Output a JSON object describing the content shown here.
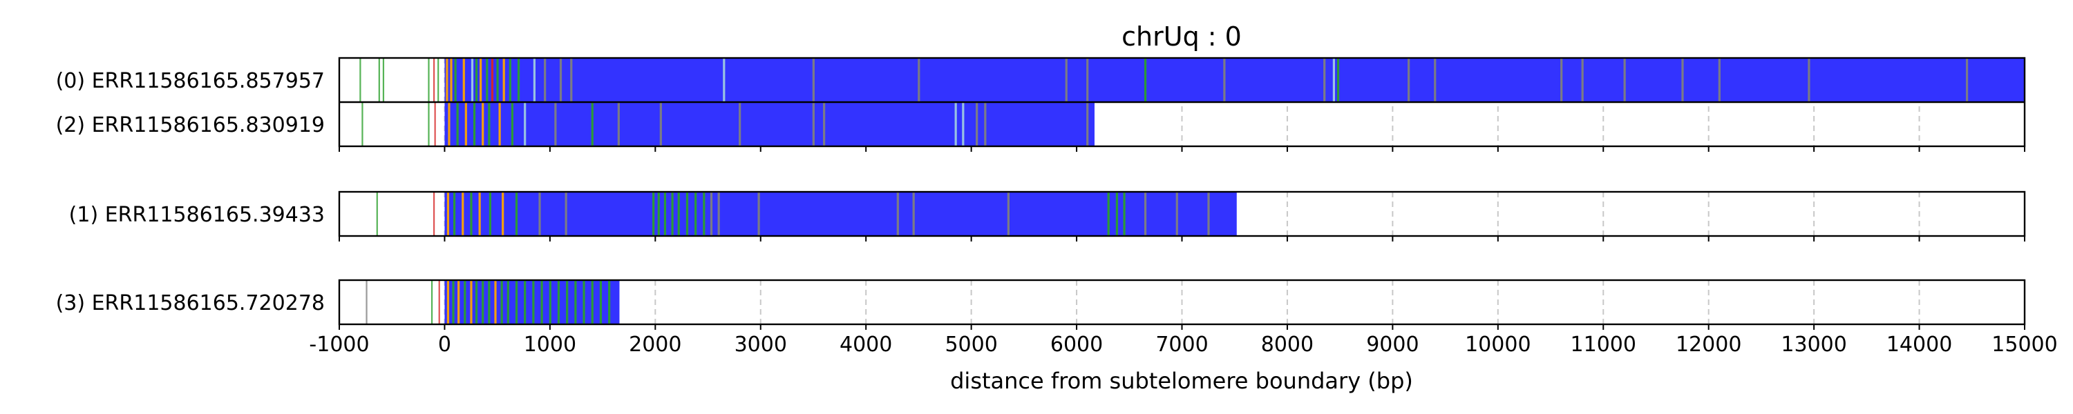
{
  "chart_data": {
    "type": "read-track",
    "title": "chrUq : 0",
    "xlabel": "distance from subtelomere boundary (bp)",
    "xlim": [
      -1000,
      15000
    ],
    "xticks": [
      -1000,
      0,
      1000,
      2000,
      3000,
      4000,
      5000,
      6000,
      7000,
      8000,
      9000,
      10000,
      11000,
      12000,
      13000,
      14000,
      15000
    ],
    "grid": "vertical dashed",
    "colors": {
      "main_fill": "#3333ff",
      "green_mark": "#2ca02c",
      "orange_mark": "#ffa500",
      "red_mark": "#d62728",
      "light_mark": "#9ecae1",
      "gray_mark": "#7f7f7f",
      "grid": "#c8c8c8"
    },
    "reads": [
      {
        "label": "(0) ERR11586165.857957",
        "group": 0,
        "start": 0,
        "end": 15000,
        "marks": [
          {
            "x": -800,
            "c": "green_mark"
          },
          {
            "x": -620,
            "c": "green_mark"
          },
          {
            "x": -580,
            "c": "green_mark"
          },
          {
            "x": -150,
            "c": "green_mark"
          },
          {
            "x": -100,
            "c": "red_mark"
          },
          {
            "x": -60,
            "c": "green_mark"
          },
          {
            "x": 20,
            "c": "orange_mark"
          },
          {
            "x": 60,
            "c": "orange_mark"
          },
          {
            "x": 100,
            "c": "green_mark"
          },
          {
            "x": 180,
            "c": "orange_mark"
          },
          {
            "x": 260,
            "c": "light_mark"
          },
          {
            "x": 300,
            "c": "green_mark"
          },
          {
            "x": 340,
            "c": "orange_mark"
          },
          {
            "x": 400,
            "c": "green_mark"
          },
          {
            "x": 450,
            "c": "red_mark"
          },
          {
            "x": 500,
            "c": "green_mark"
          },
          {
            "x": 560,
            "c": "orange_mark"
          },
          {
            "x": 620,
            "c": "green_mark"
          },
          {
            "x": 700,
            "c": "green_mark"
          },
          {
            "x": 850,
            "c": "light_mark"
          },
          {
            "x": 950,
            "c": "gray_mark"
          },
          {
            "x": 1100,
            "c": "gray_mark"
          },
          {
            "x": 1200,
            "c": "gray_mark"
          },
          {
            "x": 2650,
            "c": "light_mark"
          },
          {
            "x": 3500,
            "c": "gray_mark"
          },
          {
            "x": 4500,
            "c": "gray_mark"
          },
          {
            "x": 5900,
            "c": "gray_mark"
          },
          {
            "x": 6100,
            "c": "gray_mark"
          },
          {
            "x": 6650,
            "c": "green_mark"
          },
          {
            "x": 7400,
            "c": "gray_mark"
          },
          {
            "x": 8350,
            "c": "gray_mark"
          },
          {
            "x": 8440,
            "c": "light_mark"
          },
          {
            "x": 8480,
            "c": "green_mark"
          },
          {
            "x": 9150,
            "c": "gray_mark"
          },
          {
            "x": 9400,
            "c": "gray_mark"
          },
          {
            "x": 10600,
            "c": "gray_mark"
          },
          {
            "x": 10800,
            "c": "gray_mark"
          },
          {
            "x": 11200,
            "c": "gray_mark"
          },
          {
            "x": 11750,
            "c": "gray_mark"
          },
          {
            "x": 12100,
            "c": "gray_mark"
          },
          {
            "x": 12950,
            "c": "gray_mark"
          },
          {
            "x": 14450,
            "c": "gray_mark"
          }
        ]
      },
      {
        "label": "(2) ERR11586165.830919",
        "group": 0,
        "start": 0,
        "end": 6170,
        "marks": [
          {
            "x": -780,
            "c": "green_mark"
          },
          {
            "x": -150,
            "c": "green_mark"
          },
          {
            "x": -90,
            "c": "red_mark"
          },
          {
            "x": 40,
            "c": "orange_mark"
          },
          {
            "x": 120,
            "c": "green_mark"
          },
          {
            "x": 200,
            "c": "orange_mark"
          },
          {
            "x": 280,
            "c": "green_mark"
          },
          {
            "x": 360,
            "c": "orange_mark"
          },
          {
            "x": 420,
            "c": "green_mark"
          },
          {
            "x": 520,
            "c": "orange_mark"
          },
          {
            "x": 640,
            "c": "green_mark"
          },
          {
            "x": 760,
            "c": "light_mark"
          },
          {
            "x": 1050,
            "c": "gray_mark"
          },
          {
            "x": 1400,
            "c": "green_mark"
          },
          {
            "x": 1650,
            "c": "gray_mark"
          },
          {
            "x": 2050,
            "c": "gray_mark"
          },
          {
            "x": 2800,
            "c": "gray_mark"
          },
          {
            "x": 3500,
            "c": "gray_mark"
          },
          {
            "x": 3600,
            "c": "gray_mark"
          },
          {
            "x": 4850,
            "c": "light_mark"
          },
          {
            "x": 4920,
            "c": "light_mark"
          },
          {
            "x": 5050,
            "c": "gray_mark"
          },
          {
            "x": 5130,
            "c": "gray_mark"
          },
          {
            "x": 6100,
            "c": "gray_mark"
          }
        ]
      },
      {
        "label": "(1) ERR11586165.39433",
        "group": 1,
        "start": 0,
        "end": 7520,
        "marks": [
          {
            "x": -640,
            "c": "green_mark"
          },
          {
            "x": -100,
            "c": "red_mark"
          },
          {
            "x": 30,
            "c": "orange_mark"
          },
          {
            "x": 90,
            "c": "green_mark"
          },
          {
            "x": 170,
            "c": "orange_mark"
          },
          {
            "x": 250,
            "c": "green_mark"
          },
          {
            "x": 330,
            "c": "orange_mark"
          },
          {
            "x": 430,
            "c": "green_mark"
          },
          {
            "x": 550,
            "c": "orange_mark"
          },
          {
            "x": 680,
            "c": "green_mark"
          },
          {
            "x": 900,
            "c": "gray_mark"
          },
          {
            "x": 1150,
            "c": "gray_mark"
          },
          {
            "x": 1980,
            "c": "green_mark"
          },
          {
            "x": 2030,
            "c": "green_mark"
          },
          {
            "x": 2090,
            "c": "green_mark"
          },
          {
            "x": 2160,
            "c": "green_mark"
          },
          {
            "x": 2220,
            "c": "green_mark"
          },
          {
            "x": 2300,
            "c": "green_mark"
          },
          {
            "x": 2380,
            "c": "green_mark"
          },
          {
            "x": 2460,
            "c": "green_mark"
          },
          {
            "x": 2530,
            "c": "gray_mark"
          },
          {
            "x": 2600,
            "c": "gray_mark"
          },
          {
            "x": 2980,
            "c": "gray_mark"
          },
          {
            "x": 4300,
            "c": "gray_mark"
          },
          {
            "x": 4450,
            "c": "gray_mark"
          },
          {
            "x": 5350,
            "c": "gray_mark"
          },
          {
            "x": 6300,
            "c": "green_mark"
          },
          {
            "x": 6380,
            "c": "green_mark"
          },
          {
            "x": 6450,
            "c": "green_mark"
          },
          {
            "x": 6650,
            "c": "gray_mark"
          },
          {
            "x": 6950,
            "c": "gray_mark"
          },
          {
            "x": 7250,
            "c": "gray_mark"
          }
        ]
      },
      {
        "label": "(3) ERR11586165.720278",
        "group": 2,
        "start": 0,
        "end": 1660,
        "marks": [
          {
            "x": -740,
            "c": "gray_mark"
          },
          {
            "x": -120,
            "c": "green_mark"
          },
          {
            "x": -50,
            "c": "red_mark"
          },
          {
            "x": 30,
            "c": "orange_mark"
          },
          {
            "x": 80,
            "c": "green_mark"
          },
          {
            "x": 130,
            "c": "orange_mark"
          },
          {
            "x": 190,
            "c": "green_mark"
          },
          {
            "x": 250,
            "c": "orange_mark"
          },
          {
            "x": 300,
            "c": "green_mark"
          },
          {
            "x": 360,
            "c": "green_mark"
          },
          {
            "x": 420,
            "c": "green_mark"
          },
          {
            "x": 480,
            "c": "orange_mark"
          },
          {
            "x": 540,
            "c": "green_mark"
          },
          {
            "x": 600,
            "c": "green_mark"
          },
          {
            "x": 680,
            "c": "green_mark"
          },
          {
            "x": 760,
            "c": "green_mark"
          },
          {
            "x": 840,
            "c": "green_mark"
          },
          {
            "x": 920,
            "c": "green_mark"
          },
          {
            "x": 1000,
            "c": "green_mark"
          },
          {
            "x": 1080,
            "c": "green_mark"
          },
          {
            "x": 1160,
            "c": "green_mark"
          },
          {
            "x": 1240,
            "c": "green_mark"
          },
          {
            "x": 1320,
            "c": "green_mark"
          },
          {
            "x": 1400,
            "c": "green_mark"
          },
          {
            "x": 1480,
            "c": "green_mark"
          },
          {
            "x": 1560,
            "c": "green_mark"
          }
        ]
      }
    ]
  }
}
